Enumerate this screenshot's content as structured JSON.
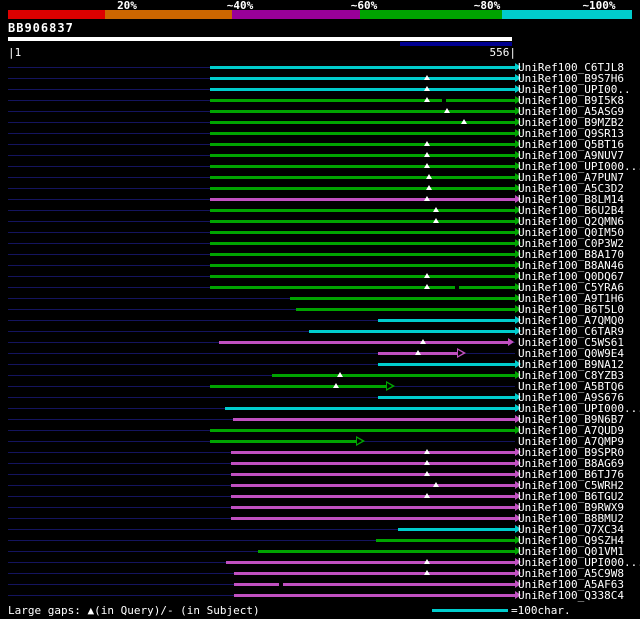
{
  "query": {
    "name": "BB906837",
    "start_label": "|1",
    "end_label": "556|",
    "length": 556
  },
  "scale_legend": {
    "labels": [
      "20%",
      "~40%",
      "~60%",
      "~80%",
      "~100%"
    ],
    "segment_colors": [
      "#dd0000",
      "#cc6600",
      "#990099",
      "#00a400",
      "#00cccc"
    ]
  },
  "colors": {
    "background": "#000000",
    "row_line": "#14145e",
    "bar_cyan": "#00cccc",
    "bar_green": "#00a400",
    "bar_magenta": "#c050c0",
    "query_bar": "#ffffff",
    "query_highlight": "#000090",
    "label_text": "#ffffff"
  },
  "footer": {
    "gaps_note": "Large gaps: ▲(in Query)/- (in Subject)",
    "scale_note": "=100char."
  },
  "chart_data": {
    "type": "bar",
    "orientation": "horizontal",
    "title": "BB906837",
    "x_range": [
      1,
      556
    ],
    "legend": {
      "cyan": "~100%",
      "green": "~80%",
      "magenta": "~60%",
      "orange": "~40%",
      "red": "20%"
    },
    "rows": [
      {
        "label": "UniRef100_C6TJL8",
        "color": "cyan",
        "start": 222,
        "end": 556,
        "query_gaps": [],
        "subject_gaps": [],
        "open_arrow": false
      },
      {
        "label": "UniRef100_B9S7H6",
        "color": "cyan",
        "start": 222,
        "end": 556,
        "query_gaps": [
          460
        ],
        "subject_gaps": [],
        "open_arrow": false
      },
      {
        "label": "UniRef100_UPI00..",
        "color": "cyan",
        "start": 222,
        "end": 556,
        "query_gaps": [
          460
        ],
        "subject_gaps": [],
        "open_arrow": false
      },
      {
        "label": "UniRef100_B9I5K8",
        "color": "green",
        "start": 222,
        "end": 556,
        "query_gaps": [
          460
        ],
        "subject_gaps": [
          478
        ],
        "open_arrow": false
      },
      {
        "label": "UniRef100_A5ASG9",
        "color": "green",
        "start": 222,
        "end": 556,
        "query_gaps": [
          482
        ],
        "subject_gaps": [],
        "open_arrow": false
      },
      {
        "label": "UniRef100_B9MZB2",
        "color": "green",
        "start": 222,
        "end": 556,
        "query_gaps": [
          500
        ],
        "subject_gaps": [],
        "open_arrow": false
      },
      {
        "label": "UniRef100_Q9SR13",
        "color": "green",
        "start": 222,
        "end": 556,
        "query_gaps": [],
        "subject_gaps": [],
        "open_arrow": false
      },
      {
        "label": "UniRef100_Q5BT16",
        "color": "green",
        "start": 222,
        "end": 556,
        "query_gaps": [
          460
        ],
        "subject_gaps": [],
        "open_arrow": false
      },
      {
        "label": "UniRef100_A9NUV7",
        "color": "green",
        "start": 222,
        "end": 556,
        "query_gaps": [
          460
        ],
        "subject_gaps": [],
        "open_arrow": false
      },
      {
        "label": "UniRef100_UPI000...",
        "color": "green",
        "start": 222,
        "end": 556,
        "query_gaps": [
          460
        ],
        "subject_gaps": [],
        "open_arrow": false
      },
      {
        "label": "UniRef100_A7PUN7",
        "color": "green",
        "start": 222,
        "end": 556,
        "query_gaps": [
          462
        ],
        "subject_gaps": [],
        "open_arrow": false
      },
      {
        "label": "UniRef100_A5C3D2",
        "color": "green",
        "start": 222,
        "end": 556,
        "query_gaps": [
          462
        ],
        "subject_gaps": [],
        "open_arrow": false
      },
      {
        "label": "UniRef100_B8LM14",
        "color": "magenta",
        "start": 222,
        "end": 556,
        "query_gaps": [
          460
        ],
        "subject_gaps": [],
        "open_arrow": false
      },
      {
        "label": "UniRef100_B6U2B4",
        "color": "green",
        "start": 222,
        "end": 556,
        "query_gaps": [
          470
        ],
        "subject_gaps": [],
        "open_arrow": false
      },
      {
        "label": "UniRef100_Q2QMN6",
        "color": "green",
        "start": 222,
        "end": 556,
        "query_gaps": [
          470
        ],
        "subject_gaps": [],
        "open_arrow": false
      },
      {
        "label": "UniRef100_Q0IM50",
        "color": "green",
        "start": 222,
        "end": 556,
        "query_gaps": [],
        "subject_gaps": [],
        "open_arrow": false
      },
      {
        "label": "UniRef100_C0P3W2",
        "color": "green",
        "start": 222,
        "end": 556,
        "query_gaps": [],
        "subject_gaps": [],
        "open_arrow": false
      },
      {
        "label": "UniRef100_B8A170",
        "color": "green",
        "start": 222,
        "end": 556,
        "query_gaps": [],
        "subject_gaps": [],
        "open_arrow": false
      },
      {
        "label": "UniRef100_B8AN46",
        "color": "green",
        "start": 222,
        "end": 556,
        "query_gaps": [],
        "subject_gaps": [],
        "open_arrow": false
      },
      {
        "label": "UniRef100_Q0DQ67",
        "color": "green",
        "start": 222,
        "end": 556,
        "query_gaps": [
          460
        ],
        "subject_gaps": [],
        "open_arrow": false
      },
      {
        "label": "UniRef100_C5YRA6",
        "color": "green",
        "start": 222,
        "end": 556,
        "query_gaps": [
          460
        ],
        "subject_gaps": [
          492
        ],
        "open_arrow": false
      },
      {
        "label": "UniRef100_A9T1H6",
        "color": "green",
        "start": 310,
        "end": 556,
        "query_gaps": [],
        "subject_gaps": [],
        "open_arrow": false
      },
      {
        "label": "UniRef100_B6T5L0",
        "color": "green",
        "start": 316,
        "end": 556,
        "query_gaps": [],
        "subject_gaps": [],
        "open_arrow": false
      },
      {
        "label": "UniRef100_A7QMQ0",
        "color": "cyan",
        "start": 406,
        "end": 556,
        "query_gaps": [],
        "subject_gaps": [],
        "open_arrow": false
      },
      {
        "label": "UniRef100_C6TAR9",
        "color": "cyan",
        "start": 330,
        "end": 556,
        "query_gaps": [],
        "subject_gaps": [],
        "open_arrow": false
      },
      {
        "label": "UniRef100_C5WS61",
        "color": "magenta",
        "start": 232,
        "end": 548,
        "query_gaps": [
          455
        ],
        "subject_gaps": [],
        "open_arrow": false
      },
      {
        "label": "UniRef100_Q0W9E4",
        "color": "magenta",
        "start": 406,
        "end": 492,
        "query_gaps": [
          450
        ],
        "subject_gaps": [],
        "open_arrow": true
      },
      {
        "label": "UniRef100_B9NA12",
        "color": "cyan",
        "start": 406,
        "end": 556,
        "query_gaps": [],
        "subject_gaps": [],
        "open_arrow": false
      },
      {
        "label": "UniRef100_C8YZB3",
        "color": "green",
        "start": 290,
        "end": 556,
        "query_gaps": [
          364
        ],
        "subject_gaps": [],
        "open_arrow": false
      },
      {
        "label": "UniRef100_A5BTQ6",
        "color": "green",
        "start": 222,
        "end": 415,
        "query_gaps": [
          360
        ],
        "subject_gaps": [],
        "open_arrow": true
      },
      {
        "label": "UniRef100_A9S676",
        "color": "cyan",
        "start": 406,
        "end": 556,
        "query_gaps": [],
        "subject_gaps": [],
        "open_arrow": false
      },
      {
        "label": "UniRef100_UPI000...",
        "color": "cyan",
        "start": 238,
        "end": 556,
        "query_gaps": [],
        "subject_gaps": [],
        "open_arrow": false
      },
      {
        "label": "UniRef100_B9N6B7",
        "color": "magenta",
        "start": 247,
        "end": 556,
        "query_gaps": [],
        "subject_gaps": [],
        "open_arrow": false
      },
      {
        "label": "UniRef100_A7QUD9",
        "color": "green",
        "start": 222,
        "end": 556,
        "query_gaps": [],
        "subject_gaps": [],
        "open_arrow": false
      },
      {
        "label": "UniRef100_A7QMP9",
        "color": "green",
        "start": 222,
        "end": 382,
        "query_gaps": [],
        "subject_gaps": [],
        "open_arrow": true
      },
      {
        "label": "UniRef100_B9SPR0",
        "color": "magenta",
        "start": 245,
        "end": 556,
        "query_gaps": [
          460
        ],
        "subject_gaps": [],
        "open_arrow": false
      },
      {
        "label": "UniRef100_B8AG69",
        "color": "magenta",
        "start": 245,
        "end": 556,
        "query_gaps": [
          460
        ],
        "subject_gaps": [],
        "open_arrow": false
      },
      {
        "label": "UniRef100_B6TJ76",
        "color": "magenta",
        "start": 245,
        "end": 556,
        "query_gaps": [
          460
        ],
        "subject_gaps": [],
        "open_arrow": false
      },
      {
        "label": "UniRef100_C5WRH2",
        "color": "magenta",
        "start": 245,
        "end": 556,
        "query_gaps": [
          470
        ],
        "subject_gaps": [],
        "open_arrow": false
      },
      {
        "label": "UniRef100_B6TGU2",
        "color": "magenta",
        "start": 245,
        "end": 556,
        "query_gaps": [
          460
        ],
        "subject_gaps": [],
        "open_arrow": false
      },
      {
        "label": "UniRef100_B9RWX9",
        "color": "magenta",
        "start": 245,
        "end": 556,
        "query_gaps": [],
        "subject_gaps": [],
        "open_arrow": false
      },
      {
        "label": "UniRef100_B8BMU2",
        "color": "magenta",
        "start": 245,
        "end": 556,
        "query_gaps": [],
        "subject_gaps": [],
        "open_arrow": false
      },
      {
        "label": "UniRef100_Q7XC34",
        "color": "cyan",
        "start": 428,
        "end": 556,
        "query_gaps": [],
        "subject_gaps": [],
        "open_arrow": false
      },
      {
        "label": "UniRef100_Q9SZH4",
        "color": "green",
        "start": 404,
        "end": 556,
        "query_gaps": [],
        "subject_gaps": [],
        "open_arrow": false
      },
      {
        "label": "UniRef100_Q01VM1",
        "color": "green",
        "start": 275,
        "end": 556,
        "query_gaps": [],
        "subject_gaps": [],
        "open_arrow": false
      },
      {
        "label": "UniRef100_UPI000...",
        "color": "magenta",
        "start": 240,
        "end": 556,
        "query_gaps": [
          460
        ],
        "subject_gaps": [],
        "open_arrow": false
      },
      {
        "label": "UniRef100_A5C9W8",
        "color": "magenta",
        "start": 248,
        "end": 556,
        "query_gaps": [
          460
        ],
        "subject_gaps": [],
        "open_arrow": false
      },
      {
        "label": "UniRef100_A5AF63",
        "color": "magenta",
        "start": 248,
        "end": 556,
        "query_gaps": [],
        "subject_gaps": [
          300
        ],
        "open_arrow": false
      },
      {
        "label": "UniRef100_Q338C4",
        "color": "magenta",
        "start": 248,
        "end": 556,
        "query_gaps": [],
        "subject_gaps": [],
        "open_arrow": false
      }
    ]
  }
}
